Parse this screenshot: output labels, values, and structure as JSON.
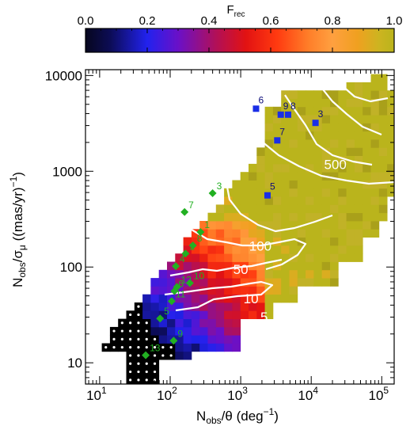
{
  "chart_data": {
    "type": "heatmap",
    "colorbar": {
      "title_main": "F",
      "title_sub": "rec",
      "ticks": [
        "0.0",
        "0.2",
        "0.4",
        "0.6",
        "0.8",
        "1.0"
      ],
      "range": [
        0,
        1
      ]
    },
    "x_axis": {
      "title_main": "N",
      "title_sub": "obs",
      "title_rest": "/θ (deg",
      "title_sup": "−1",
      "title_end": ")",
      "scale": "log",
      "range": [
        6.3,
        150000
      ],
      "tick_base": "10",
      "tick_exponents": [
        "1",
        "2",
        "3",
        "4",
        "5"
      ]
    },
    "y_axis": {
      "title_main": "N",
      "title_sub1": "obs",
      "title_mid": "/σ",
      "title_sub2": "μ",
      "title_rest": " ((mas/yr)",
      "title_sup": "−1",
      "title_end": ")",
      "scale": "log",
      "range": [
        6,
        11500
      ],
      "tick_labels": [
        "10",
        "100",
        "1000",
        "10000"
      ]
    },
    "contours": [
      {
        "level": "5",
        "label_at": [
          2150,
          27
        ]
      },
      {
        "level": "10",
        "label_at": [
          1400,
          42
        ]
      },
      {
        "level": "50",
        "label_at": [
          1000,
          85
        ]
      },
      {
        "level": "100",
        "label_at": [
          1900,
          148
        ]
      },
      {
        "level": "500",
        "label_at": [
          22000,
          1050
        ]
      }
    ],
    "green_points": [
      {
        "label": "3",
        "x": 400,
        "y": 590
      },
      {
        "label": "7",
        "x": 160,
        "y": 375
      },
      {
        "label": "1",
        "x": 270,
        "y": 232
      },
      {
        "label": "8",
        "x": 210,
        "y": 168
      },
      {
        "label": "2",
        "x": 165,
        "y": 138
      },
      {
        "label": "4",
        "x": 120,
        "y": 102
      },
      {
        "label": "10",
        "x": 190,
        "y": 68
      },
      {
        "label": "12",
        "x": 125,
        "y": 62
      },
      {
        "label": "6",
        "x": 115,
        "y": 56
      },
      {
        "label": "11",
        "x": 105,
        "y": 44
      },
      {
        "label": "5",
        "x": 72,
        "y": 29
      },
      {
        "label": "9",
        "x": 112,
        "y": 17
      },
      {
        "label": "13",
        "x": 45,
        "y": 12
      }
    ],
    "blue_points": [
      {
        "label": "6",
        "x": 1650,
        "y": 4500
      },
      {
        "label": "9",
        "x": 3700,
        "y": 3900
      },
      {
        "label": "8",
        "x": 4700,
        "y": 3900
      },
      {
        "label": "7",
        "x": 3300,
        "y": 2100
      },
      {
        "label": "3",
        "x": 11500,
        "y": 3200
      },
      {
        "label": "5",
        "x": 2400,
        "y": 560
      }
    ],
    "colors": {
      "olive": "#bab41c",
      "green_marker": "#22b022",
      "blue_marker": "#1a2ee6",
      "contour": "#ffffff"
    }
  }
}
